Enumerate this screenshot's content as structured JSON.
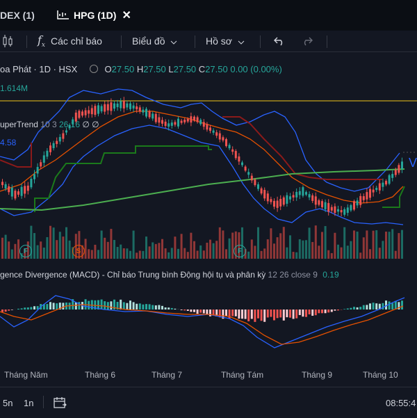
{
  "tabs": [
    {
      "label": "DEX (1)",
      "active": false
    },
    {
      "label": "HPG (1D)",
      "active": true,
      "close": "✕"
    }
  ],
  "toolbar": {
    "indicators_label": "Các chỉ báo",
    "chart_type_label": "Biểu đồ",
    "profile_label": "Hồ sơ"
  },
  "symbol": {
    "name": "oa Phát · 1D · HSX",
    "ohlc": {
      "o_label": "O",
      "o": "27.50",
      "h_label": "H",
      "h": "27.50",
      "l_label": "L",
      "l": "27.50",
      "c_label": "C",
      "c": "27.50",
      "change": "0.00 (0.00%)"
    }
  },
  "volume_label": "1.614M",
  "supertrend": {
    "label": "uperTrend",
    "params": "10 3",
    "value": "26.16",
    "extra": "∅ ∅",
    "level": "4.58"
  },
  "macd": {
    "label": "gence Divergence (MACD) - Chỉ báo Trung bình Động hội tụ và phân kỳ",
    "params": "12 26 close 9",
    "value": "0.19"
  },
  "markers": [
    "F",
    "S",
    "F"
  ],
  "x_axis_labels": [
    "Tháng Năm",
    "Tháng 6",
    "Tháng 7",
    "Tháng Tám",
    "Tháng 9",
    "Tháng 10"
  ],
  "bottom": {
    "ranges": [
      "5n",
      "1n"
    ],
    "time": "08:55:4"
  },
  "colors": {
    "up": "#26a69a",
    "down": "#ef5350",
    "bollinger": "#2962ff",
    "ema": "#e65100",
    "ma200": "#4caf50",
    "supertrend_up": "#1b7a1b",
    "supertrend_down": "#8b1a1a",
    "hline": "#f0c419"
  }
}
